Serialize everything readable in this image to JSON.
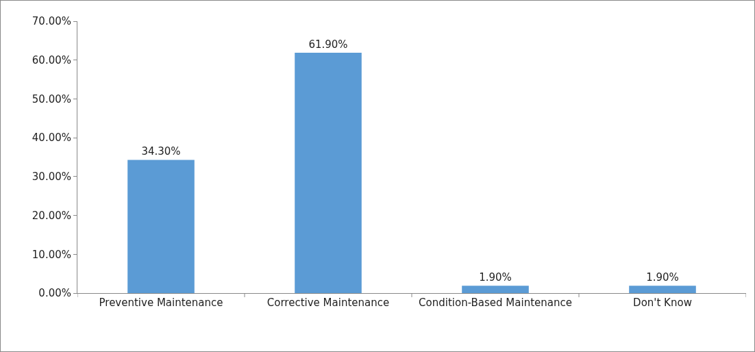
{
  "chart_data": {
    "type": "bar",
    "categories": [
      "Preventive Maintenance",
      "Corrective Maintenance",
      "Condition-Based Maintenance",
      "Don't Know"
    ],
    "values": [
      34.3,
      61.9,
      1.9,
      1.9
    ],
    "value_labels": [
      "34.30%",
      "61.90%",
      "1.90%",
      "1.90%"
    ],
    "color": "#5b9bd5",
    "ylim": [
      0,
      70
    ],
    "yticks": [
      {
        "value": 0,
        "label": "0.00%"
      },
      {
        "value": 10,
        "label": "10.00%"
      },
      {
        "value": 20,
        "label": "20.00%"
      },
      {
        "value": 30,
        "label": "30.00%"
      },
      {
        "value": 40,
        "label": "40.00%"
      },
      {
        "value": 50,
        "label": "50.00%"
      },
      {
        "value": 60,
        "label": "60.00%"
      },
      {
        "value": 70,
        "label": "70.00%"
      }
    ],
    "grid": false
  }
}
